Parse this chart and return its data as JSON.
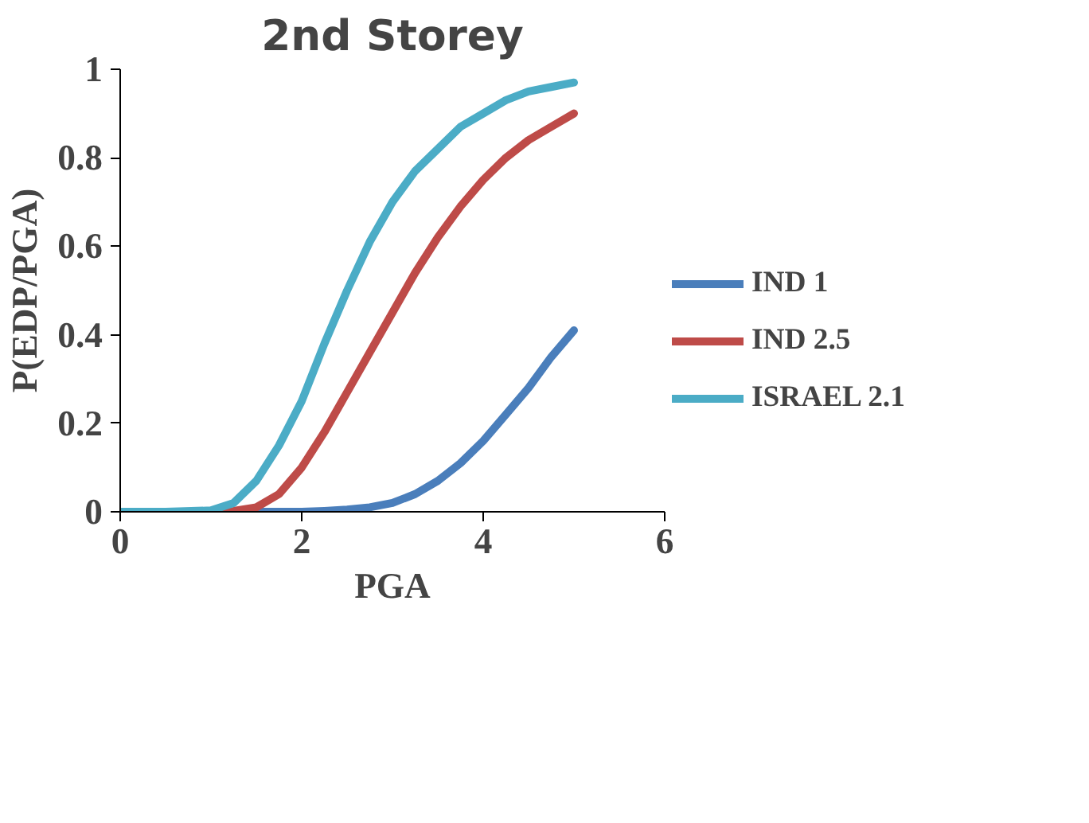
{
  "chart_data": {
    "type": "line",
    "title": "2nd Storey",
    "xlabel": "PGA",
    "ylabel": "P(EDP/PGA)",
    "x": [
      0,
      0.5,
      1,
      1.25,
      1.5,
      1.75,
      2,
      2.25,
      2.5,
      2.75,
      3,
      3.25,
      3.5,
      3.75,
      4,
      4.25,
      4.5,
      4.75,
      5
    ],
    "series": [
      {
        "name": "IND 1",
        "color": "#4a7ebb",
        "values": [
          0,
          0,
          0,
          0,
          0,
          0,
          0,
          0.002,
          0.005,
          0.01,
          0.02,
          0.04,
          0.07,
          0.11,
          0.16,
          0.22,
          0.28,
          0.35,
          0.41
        ]
      },
      {
        "name": "IND 2.5",
        "color": "#be4b48",
        "values": [
          0,
          0,
          0,
          0.002,
          0.01,
          0.04,
          0.1,
          0.18,
          0.27,
          0.36,
          0.45,
          0.54,
          0.62,
          0.69,
          0.75,
          0.8,
          0.84,
          0.87,
          0.9
        ]
      },
      {
        "name": "ISRAEL 2.1",
        "color": "#4bacc6",
        "values": [
          0,
          0,
          0.003,
          0.02,
          0.07,
          0.15,
          0.25,
          0.38,
          0.5,
          0.61,
          0.7,
          0.77,
          0.82,
          0.87,
          0.9,
          0.93,
          0.95,
          0.96,
          0.97
        ]
      }
    ],
    "xlim": [
      0,
      6
    ],
    "xticks": [
      0,
      2,
      4,
      6
    ],
    "ylim": [
      0,
      1
    ],
    "yticks": [
      0,
      0.2,
      0.4,
      0.6,
      0.8,
      1
    ],
    "grid": false,
    "legend": "right",
    "marker": "none",
    "line_style": "solid"
  }
}
